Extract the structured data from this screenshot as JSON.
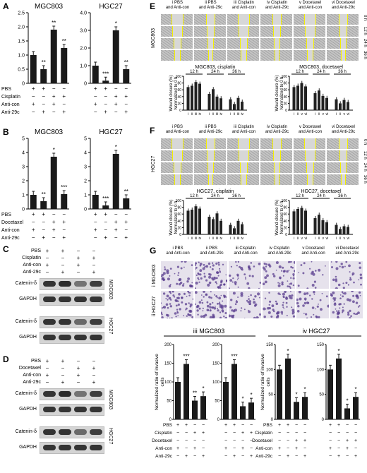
{
  "panels": {
    "A": {
      "letter": "A",
      "charts": [
        {
          "title": "MGC803",
          "values": [
            1.0,
            0.5,
            1.9,
            1.25
          ],
          "stars": [
            "",
            "**",
            "**",
            "**"
          ],
          "ymax": 2.5,
          "ticks": [
            "0",
            "0.5",
            "1.0",
            "1.5",
            "2.0",
            "2.5"
          ]
        },
        {
          "title": "HGC27",
          "values": [
            1.0,
            0.15,
            3.0,
            0.8
          ],
          "stars": [
            "",
            "***",
            "*",
            "**"
          ],
          "ymax": 4.0,
          "ticks": [
            "0",
            "1.0",
            "2.0",
            "3.0",
            "4.0"
          ]
        }
      ],
      "rows": [
        {
          "label": "PBS",
          "signs": [
            "+",
            "+",
            "−",
            "−"
          ]
        },
        {
          "label": "Cisplatin",
          "signs": [
            "−",
            "−",
            "+",
            "+"
          ]
        },
        {
          "label": "Anti-con",
          "signs": [
            "+",
            "−",
            "+",
            "−"
          ]
        },
        {
          "label": "Anti-29c",
          "signs": [
            "−",
            "+",
            "−",
            "+"
          ]
        }
      ]
    },
    "B": {
      "letter": "B",
      "charts": [
        {
          "title": "MGC803",
          "values": [
            1.0,
            0.55,
            3.7,
            1.05
          ],
          "stars": [
            "",
            "**",
            "*",
            "***"
          ],
          "ymax": 5,
          "ticks": [
            "0",
            "1",
            "2",
            "3",
            "4",
            "5"
          ]
        },
        {
          "title": "HGC27",
          "values": [
            1.0,
            0.25,
            3.9,
            0.75
          ],
          "stars": [
            "",
            "***",
            "*",
            "**"
          ],
          "ymax": 5,
          "ticks": [
            "0",
            "1",
            "2",
            "3",
            "4",
            "5"
          ]
        }
      ],
      "rows": [
        {
          "label": "PBS",
          "signs": [
            "+",
            "+",
            "−",
            "−"
          ]
        },
        {
          "label": "Docetaxel",
          "signs": [
            "−",
            "−",
            "+",
            "+"
          ]
        },
        {
          "label": "Anti-con",
          "signs": [
            "+",
            "−",
            "+",
            "−"
          ]
        },
        {
          "label": "Anti-29c",
          "signs": [
            "−",
            "+",
            "−",
            "+"
          ]
        }
      ]
    },
    "C": {
      "letter": "C",
      "rows": [
        {
          "label": "PBS",
          "signs": [
            "+",
            "+",
            "−",
            "−"
          ]
        },
        {
          "label": "Cisplatin",
          "signs": [
            "−",
            "−",
            "+",
            "+"
          ]
        },
        {
          "label": "Anti-con",
          "signs": [
            "+",
            "−",
            "+",
            "−"
          ]
        },
        {
          "label": "Anti-29c",
          "signs": [
            "−",
            "+",
            "−",
            "+"
          ]
        }
      ],
      "blots": [
        {
          "label": "Catenin-δ",
          "cell": "MGC803"
        },
        {
          "label": "GAPDH",
          "cell": ""
        },
        {
          "label": "Catenin-δ",
          "cell": "HGC27"
        },
        {
          "label": "GAPDH",
          "cell": ""
        }
      ]
    },
    "D": {
      "letter": "D",
      "rows": [
        {
          "label": "PBS",
          "signs": [
            "+",
            "+",
            "−",
            "−"
          ]
        },
        {
          "label": "Docetaxel",
          "signs": [
            "−",
            "−",
            "+",
            "+"
          ]
        },
        {
          "label": "Anti-con",
          "signs": [
            "+",
            "−",
            "+",
            "−"
          ]
        },
        {
          "label": "Anti-29c",
          "signs": [
            "−",
            "+",
            "−",
            "+"
          ]
        }
      ],
      "blots": [
        {
          "label": "Catenin-δ",
          "cell": "MGC803"
        },
        {
          "label": "GAPDH",
          "cell": ""
        },
        {
          "label": "Catenin-δ",
          "cell": "HGC27"
        },
        {
          "label": "GAPDH",
          "cell": ""
        }
      ]
    },
    "E": {
      "letter": "E",
      "cell": "MGC803",
      "headers": [
        "i PBS\nand Anti-con",
        "ii PBS\nand Anti-29c",
        "iii Cisplatin\nand Anti-con",
        "iv Cisplatin\nand Anti-29c",
        "v Docetaxel\nand Anti-con",
        "vi Docetaxel\nand Anti-29c"
      ],
      "times": [
        "0 h",
        "12 h",
        "24 h",
        "36 h"
      ],
      "charts": [
        {
          "title": "MGC803, cisplatin",
          "groups": [
            [
              68,
              72,
              83,
              78
            ],
            [
              48,
              62,
              40,
              35
            ],
            [
              32,
              18,
              36,
              25
            ]
          ],
          "labels": [
            "i",
            "ii",
            "iii",
            "iv"
          ]
        },
        {
          "title": "MGC803, docetaxel",
          "groups": [
            [
              68,
              72,
              80,
              70
            ],
            [
              50,
              58,
              42,
              36
            ],
            [
              32,
              20,
              30,
              24
            ]
          ],
          "labels": [
            "i",
            "ii",
            "v",
            "vi"
          ]
        }
      ],
      "group_titles": [
        "12 h",
        "24 h",
        "36 h"
      ],
      "ylabel": "Wound closure (%)\nNormalized to 0 h",
      "yticks": [
        "0",
        "20",
        "40",
        "60",
        "80",
        "100"
      ]
    },
    "F": {
      "letter": "F",
      "cell": "HGC27",
      "headers": [
        "i PBS\nand Anti-con",
        "ii PBS\nand Anti-29c",
        "iii Cisplatin\nand Anti-con",
        "iv Cisplatin\nand Anti-29c",
        "v Docetaxel\nand Anti-con",
        "vi Docetaxel\nand Anti-29c"
      ],
      "times": [
        "0 h",
        "12 h",
        "24 h",
        "36 h"
      ],
      "charts": [
        {
          "title": "HGC27, cisplatin",
          "groups": [
            [
              70,
              73,
              83,
              76
            ],
            [
              52,
              45,
              62,
              40
            ],
            [
              28,
              18,
              40,
              30
            ]
          ],
          "labels": [
            "i",
            "ii",
            "iii",
            "iv"
          ]
        },
        {
          "title": "HGC27, docetaxel",
          "groups": [
            [
              68,
              75,
              78,
              70
            ],
            [
              48,
              58,
              42,
              36
            ],
            [
              28,
              16,
              24,
              22
            ]
          ],
          "labels": [
            "i",
            "ii",
            "v",
            "vi"
          ]
        }
      ],
      "group_titles": [
        "12 h",
        "24 h",
        "36 h"
      ],
      "ylabel": "Wound closure (%)\nNormalized to 0 h",
      "yticks": [
        "0",
        "20",
        "40",
        "60",
        "80",
        "100"
      ]
    },
    "G": {
      "letter": "G",
      "headers": [
        "i PBS\nand Anti-con",
        "ii PBS\nand Anti-29c",
        "iii Cisplatin\nand Anti-con",
        "iv Cisplatin\nand Anti-29c",
        "v Docetaxel\nand Anti-con",
        "vi Docetaxel\nand Anti-29c"
      ],
      "rows": [
        "i MGC803",
        "ii HGC27"
      ],
      "chart_titles": [
        "iii MGC803",
        "iv HGC27"
      ],
      "ylabel": "Normalized ratio of invasive\ncells",
      "charts": [
        {
          "values": [
            100,
            148,
            50,
            62
          ],
          "stars": [
            "",
            "***",
            "**",
            "*"
          ],
          "ticks": [
            "0",
            "50",
            "100",
            "150",
            "200"
          ],
          "ymax": 200
        },
        {
          "values": [
            100,
            148,
            35,
            45
          ],
          "stars": [
            "",
            "***",
            "*",
            "*"
          ],
          "ticks": [
            "0",
            "50",
            "100",
            "150",
            "200"
          ],
          "ymax": 200
        },
        {
          "values": [
            100,
            122,
            35,
            45
          ],
          "stars": [
            "",
            "*",
            "*",
            "*"
          ],
          "ticks": [
            "0",
            "50",
            "100",
            "150"
          ],
          "ymax": 150
        },
        {
          "values": [
            100,
            122,
            22,
            45
          ],
          "stars": [
            "",
            "*",
            "*",
            "*"
          ],
          "ticks": [
            "0",
            "50",
            "100",
            "150"
          ],
          "ymax": 150
        }
      ],
      "bottom_rows": [
        {
          "label": "PBS",
          "signs": [
            "+",
            "+",
            "−",
            "−",
            "+",
            "+",
            "−",
            "−"
          ]
        },
        {
          "label": "Cisplatin",
          "signs": [
            "−",
            "−",
            "+",
            "+",
            "−",
            "−",
            "−",
            "−"
          ]
        },
        {
          "label": "Docetaxel",
          "signs": [
            "−",
            "−",
            "−",
            "−",
            "−",
            "−",
            "+",
            "+"
          ]
        },
        {
          "label": "Anti-con",
          "signs": [
            "+",
            "−",
            "+",
            "−",
            "+",
            "−",
            "+",
            "−"
          ]
        },
        {
          "label": "Anti-29c",
          "signs": [
            "−",
            "+",
            "−",
            "+",
            "−",
            "+",
            "−",
            "+"
          ]
        }
      ]
    }
  },
  "chart_data": [
    {
      "type": "bar",
      "title": "MGC803",
      "categories": [
        "1",
        "2",
        "3",
        "4"
      ],
      "values": [
        1.0,
        0.5,
        1.9,
        1.25
      ],
      "ylim": [
        0,
        2.5
      ]
    },
    {
      "type": "bar",
      "title": "HGC27",
      "categories": [
        "1",
        "2",
        "3",
        "4"
      ],
      "values": [
        1.0,
        0.15,
        3.0,
        0.8
      ],
      "ylim": [
        0,
        4
      ]
    },
    {
      "type": "bar",
      "title": "MGC803",
      "categories": [
        "1",
        "2",
        "3",
        "4"
      ],
      "values": [
        1.0,
        0.55,
        3.7,
        1.05
      ],
      "ylim": [
        0,
        5
      ]
    },
    {
      "type": "bar",
      "title": "HGC27",
      "categories": [
        "1",
        "2",
        "3",
        "4"
      ],
      "values": [
        1.0,
        0.25,
        3.9,
        0.75
      ],
      "ylim": [
        0,
        5
      ]
    },
    {
      "type": "bar",
      "title": "MGC803, cisplatin",
      "categories": [
        "12 h",
        "24 h",
        "36 h"
      ],
      "series": [
        {
          "name": "i",
          "values": [
            68,
            48,
            32
          ]
        },
        {
          "name": "ii",
          "values": [
            72,
            62,
            18
          ]
        },
        {
          "name": "iii",
          "values": [
            83,
            40,
            36
          ]
        },
        {
          "name": "iv",
          "values": [
            78,
            35,
            25
          ]
        }
      ],
      "ylim": [
        0,
        100
      ]
    },
    {
      "type": "bar",
      "title": "MGC803, docetaxel",
      "categories": [
        "12 h",
        "24 h",
        "36 h"
      ],
      "series": [
        {
          "name": "i",
          "values": [
            68,
            50,
            32
          ]
        },
        {
          "name": "ii",
          "values": [
            72,
            58,
            20
          ]
        },
        {
          "name": "v",
          "values": [
            80,
            42,
            30
          ]
        },
        {
          "name": "vi",
          "values": [
            70,
            36,
            24
          ]
        }
      ],
      "ylim": [
        0,
        100
      ]
    },
    {
      "type": "bar",
      "title": "HGC27, cisplatin",
      "categories": [
        "12 h",
        "24 h",
        "36 h"
      ],
      "series": [
        {
          "name": "i",
          "values": [
            70,
            52,
            28
          ]
        },
        {
          "name": "ii",
          "values": [
            73,
            45,
            18
          ]
        },
        {
          "name": "iii",
          "values": [
            83,
            62,
            40
          ]
        },
        {
          "name": "iv",
          "values": [
            76,
            40,
            30
          ]
        }
      ],
      "ylim": [
        0,
        100
      ]
    },
    {
      "type": "bar",
      "title": "HGC27, docetaxel",
      "categories": [
        "12 h",
        "24 h",
        "36 h"
      ],
      "series": [
        {
          "name": "i",
          "values": [
            68,
            48,
            28
          ]
        },
        {
          "name": "ii",
          "values": [
            75,
            58,
            16
          ]
        },
        {
          "name": "v",
          "values": [
            78,
            42,
            24
          ]
        },
        {
          "name": "vi",
          "values": [
            70,
            36,
            22
          ]
        }
      ],
      "ylim": [
        0,
        100
      ]
    },
    {
      "type": "bar",
      "title": "iii MGC803",
      "categories": [
        "1",
        "2",
        "3",
        "4",
        "5",
        "6",
        "7",
        "8"
      ],
      "values": [
        100,
        148,
        50,
        62,
        100,
        148,
        35,
        45
      ],
      "ylim": [
        0,
        200
      ]
    },
    {
      "type": "bar",
      "title": "iv HGC27",
      "categories": [
        "1",
        "2",
        "3",
        "4",
        "5",
        "6",
        "7",
        "8"
      ],
      "values": [
        100,
        122,
        35,
        45,
        100,
        122,
        22,
        45
      ],
      "ylim": [
        0,
        150
      ]
    }
  ]
}
